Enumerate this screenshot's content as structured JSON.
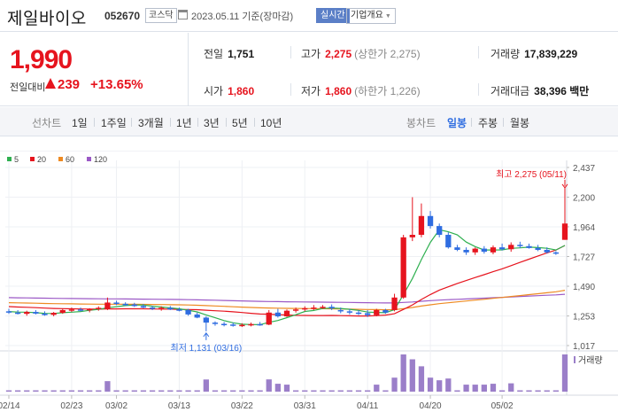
{
  "header": {
    "stock_name": "제일바이오",
    "stock_code": "052670",
    "market": "코스닥",
    "date_text": "2023.05.11 기준(장마감)",
    "realtime_label": "실시간",
    "company_label": "기업개요"
  },
  "summary": {
    "price": "1,990",
    "change_label": "전일대비",
    "change_amount": "239",
    "change_percent": "+13.65%",
    "prev_close_label": "전일",
    "prev_close": "1,751",
    "high_label": "고가",
    "high": "2,275",
    "upper_limit": "(상한가 2,275)",
    "volume_label": "거래량",
    "volume": "17,839,229",
    "open_label": "시가",
    "open": "1,860",
    "low_label": "저가",
    "low": "1,860",
    "lower_limit": "(하한가 1,226)",
    "amount_label": "거래대금",
    "amount": "38,396 백만"
  },
  "tabs": {
    "line_chart": "선차트",
    "day1": "1일",
    "week1": "1주일",
    "month3": "3개월",
    "year1": "1년",
    "year3": "3년",
    "year5": "5년",
    "year10": "10년",
    "candle_chart": "봉차트",
    "daily": "일봉",
    "weekly": "주봉",
    "monthly": "월봉"
  },
  "colors": {
    "up": "#e6141e",
    "down": "#2f6de1",
    "accent": "#2f6de1",
    "ma5": "#2fb050",
    "ma20": "#e6141e",
    "ma60": "#ee8a22",
    "ma120": "#9b59c6",
    "volume": "#9b7fc9"
  },
  "chart_data": {
    "type": "candlestick",
    "legend": [
      {
        "name": "5",
        "color": "#2fb050"
      },
      {
        "name": "20",
        "color": "#e6141e"
      },
      {
        "name": "60",
        "color": "#ee8a22"
      },
      {
        "name": "120",
        "color": "#9b59c6"
      }
    ],
    "y_ticks": [
      2437,
      2200,
      1964,
      1727,
      1490,
      1253,
      1017
    ],
    "ylim": [
      1017,
      2437
    ],
    "x_labels": [
      "02/14",
      "02/23",
      "03/02",
      "03/13",
      "03/22",
      "03/31",
      "04/11",
      "04/20",
      "05/02"
    ],
    "annotation_high": "최고 2,275 (05/11)",
    "annotation_low": "최저 1,131 (03/16)",
    "volume_label": "거래량",
    "candles": [
      {
        "d": "02/14",
        "o": 1290,
        "h": 1310,
        "l": 1270,
        "c": 1280
      },
      {
        "d": "02/15",
        "o": 1280,
        "h": 1300,
        "l": 1265,
        "c": 1270
      },
      {
        "d": "02/16",
        "o": 1270,
        "h": 1295,
        "l": 1255,
        "c": 1285
      },
      {
        "d": "02/17",
        "o": 1285,
        "h": 1300,
        "l": 1265,
        "c": 1272
      },
      {
        "d": "02/20",
        "o": 1272,
        "h": 1290,
        "l": 1255,
        "c": 1260
      },
      {
        "d": "02/21",
        "o": 1262,
        "h": 1285,
        "l": 1250,
        "c": 1278
      },
      {
        "d": "02/22",
        "o": 1278,
        "h": 1310,
        "l": 1270,
        "c": 1300
      },
      {
        "d": "02/23",
        "o": 1300,
        "h": 1320,
        "l": 1285,
        "c": 1305
      },
      {
        "d": "02/24",
        "o": 1305,
        "h": 1320,
        "l": 1290,
        "c": 1298
      },
      {
        "d": "02/27",
        "o": 1298,
        "h": 1315,
        "l": 1282,
        "c": 1310
      },
      {
        "d": "02/28",
        "o": 1310,
        "h": 1330,
        "l": 1295,
        "c": 1318
      },
      {
        "d": "03/01",
        "o": 1310,
        "h": 1400,
        "l": 1300,
        "c": 1360
      },
      {
        "d": "03/02",
        "o": 1360,
        "h": 1375,
        "l": 1340,
        "c": 1350
      },
      {
        "d": "03/03",
        "o": 1350,
        "h": 1362,
        "l": 1332,
        "c": 1340
      },
      {
        "d": "03/06",
        "o": 1345,
        "h": 1358,
        "l": 1325,
        "c": 1332
      },
      {
        "d": "03/07",
        "o": 1332,
        "h": 1348,
        "l": 1315,
        "c": 1320
      },
      {
        "d": "03/08",
        "o": 1320,
        "h": 1335,
        "l": 1300,
        "c": 1310
      },
      {
        "d": "03/09",
        "o": 1310,
        "h": 1330,
        "l": 1295,
        "c": 1318
      },
      {
        "d": "03/10",
        "o": 1318,
        "h": 1332,
        "l": 1300,
        "c": 1305
      },
      {
        "d": "03/13",
        "o": 1305,
        "h": 1320,
        "l": 1290,
        "c": 1298
      },
      {
        "d": "03/14",
        "o": 1300,
        "h": 1310,
        "l": 1255,
        "c": 1265
      },
      {
        "d": "03/15",
        "o": 1265,
        "h": 1280,
        "l": 1235,
        "c": 1240
      },
      {
        "d": "03/16",
        "o": 1240,
        "h": 1250,
        "l": 1131,
        "c": 1200
      },
      {
        "d": "03/17",
        "o": 1200,
        "h": 1210,
        "l": 1175,
        "c": 1190
      },
      {
        "d": "03/20",
        "o": 1190,
        "h": 1205,
        "l": 1170,
        "c": 1185
      },
      {
        "d": "03/21",
        "o": 1185,
        "h": 1200,
        "l": 1168,
        "c": 1178
      },
      {
        "d": "03/22",
        "o": 1178,
        "h": 1195,
        "l": 1165,
        "c": 1182
      },
      {
        "d": "03/23",
        "o": 1182,
        "h": 1200,
        "l": 1170,
        "c": 1188
      },
      {
        "d": "03/24",
        "o": 1188,
        "h": 1205,
        "l": 1175,
        "c": 1184
      },
      {
        "d": "03/27",
        "o": 1184,
        "h": 1300,
        "l": 1180,
        "c": 1280
      },
      {
        "d": "03/28",
        "o": 1280,
        "h": 1310,
        "l": 1240,
        "c": 1250
      },
      {
        "d": "03/29",
        "o": 1250,
        "h": 1305,
        "l": 1245,
        "c": 1295
      },
      {
        "d": "03/30",
        "o": 1295,
        "h": 1320,
        "l": 1280,
        "c": 1305
      },
      {
        "d": "03/31",
        "o": 1305,
        "h": 1330,
        "l": 1290,
        "c": 1315
      },
      {
        "d": "04/03",
        "o": 1315,
        "h": 1340,
        "l": 1300,
        "c": 1320
      },
      {
        "d": "04/04",
        "o": 1320,
        "h": 1340,
        "l": 1310,
        "c": 1326
      },
      {
        "d": "04/05",
        "o": 1326,
        "h": 1345,
        "l": 1300,
        "c": 1315
      },
      {
        "d": "04/06",
        "o": 1300,
        "h": 1320,
        "l": 1275,
        "c": 1290
      },
      {
        "d": "04/07",
        "o": 1290,
        "h": 1310,
        "l": 1265,
        "c": 1280
      },
      {
        "d": "04/10",
        "o": 1280,
        "h": 1300,
        "l": 1260,
        "c": 1275
      },
      {
        "d": "04/11",
        "o": 1275,
        "h": 1300,
        "l": 1245,
        "c": 1260
      },
      {
        "d": "04/12",
        "o": 1260,
        "h": 1310,
        "l": 1250,
        "c": 1300
      },
      {
        "d": "04/13",
        "o": 1300,
        "h": 1310,
        "l": 1270,
        "c": 1280
      },
      {
        "d": "04/14",
        "o": 1300,
        "h": 1430,
        "l": 1290,
        "c": 1400
      },
      {
        "d": "04/17",
        "o": 1400,
        "h": 1900,
        "l": 1390,
        "c": 1880
      },
      {
        "d": "04/18",
        "o": 1880,
        "h": 2200,
        "l": 1850,
        "c": 1900
      },
      {
        "d": "04/19",
        "o": 1900,
        "h": 2150,
        "l": 1880,
        "c": 2050
      },
      {
        "d": "04/20",
        "o": 2050,
        "h": 2090,
        "l": 1950,
        "c": 1970
      },
      {
        "d": "04/21",
        "o": 1970,
        "h": 1990,
        "l": 1880,
        "c": 1900
      },
      {
        "d": "04/24",
        "o": 1900,
        "h": 1920,
        "l": 1790,
        "c": 1800
      },
      {
        "d": "04/25",
        "o": 1800,
        "h": 1820,
        "l": 1770,
        "c": 1780
      },
      {
        "d": "04/26",
        "o": 1780,
        "h": 1800,
        "l": 1740,
        "c": 1760
      },
      {
        "d": "04/27",
        "o": 1760,
        "h": 1800,
        "l": 1740,
        "c": 1790
      },
      {
        "d": "04/28",
        "o": 1790,
        "h": 1810,
        "l": 1750,
        "c": 1765
      },
      {
        "d": "05/01",
        "o": 1760,
        "h": 1815,
        "l": 1745,
        "c": 1800
      },
      {
        "d": "05/02",
        "o": 1800,
        "h": 1830,
        "l": 1775,
        "c": 1785
      },
      {
        "d": "05/03",
        "o": 1785,
        "h": 1840,
        "l": 1765,
        "c": 1820
      },
      {
        "d": "05/04",
        "o": 1820,
        "h": 1845,
        "l": 1795,
        "c": 1810
      },
      {
        "d": "05/05",
        "o": 1810,
        "h": 1830,
        "l": 1790,
        "c": 1795
      },
      {
        "d": "05/08",
        "o": 1795,
        "h": 1820,
        "l": 1770,
        "c": 1780
      },
      {
        "d": "05/09",
        "o": 1780,
        "h": 1800,
        "l": 1750,
        "c": 1760
      },
      {
        "d": "05/10",
        "o": 1760,
        "h": 1770,
        "l": 1740,
        "c": 1751
      },
      {
        "d": "05/11",
        "o": 1860,
        "h": 2275,
        "l": 1860,
        "c": 1990
      }
    ]
  }
}
